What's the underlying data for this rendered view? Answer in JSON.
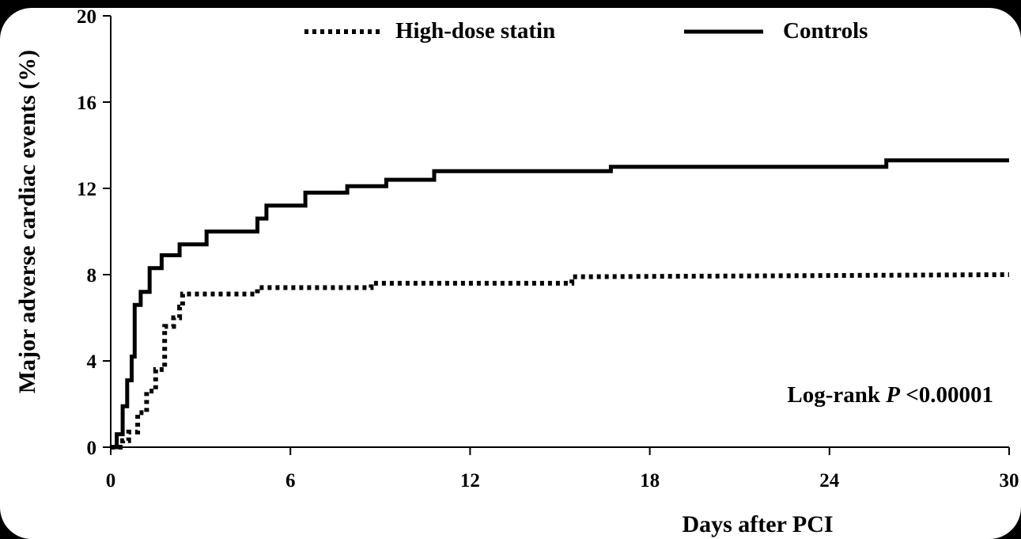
{
  "chart_data": {
    "type": "line",
    "ylabel": "Major adverse cardiac events (%)",
    "xlabel": "Days after PCI",
    "annotation_prefix": "Log-rank ",
    "annotation_p": "P",
    "annotation_value": " <0.00001",
    "xlim": [
      0,
      30
    ],
    "ylim": [
      0,
      20
    ],
    "x_ticks": [
      "0",
      "6",
      "12",
      "18",
      "24",
      "30"
    ],
    "y_ticks": [
      "0",
      "4",
      "8",
      "12",
      "16",
      "20"
    ],
    "legend_placement": "top",
    "grid": false,
    "series": [
      {
        "name": "High-dose statin",
        "style": "dotted",
        "points": [
          [
            0,
            0
          ],
          [
            0.4,
            0
          ],
          [
            0.4,
            0.3
          ],
          [
            0.6,
            0.3
          ],
          [
            0.6,
            0.7
          ],
          [
            0.9,
            0.7
          ],
          [
            0.9,
            1.6
          ],
          [
            1.2,
            1.6
          ],
          [
            1.2,
            2.6
          ],
          [
            1.5,
            2.6
          ],
          [
            1.5,
            3.6
          ],
          [
            1.8,
            3.6
          ],
          [
            1.8,
            5.6
          ],
          [
            2.1,
            5.6
          ],
          [
            2.1,
            6.0
          ],
          [
            2.3,
            6.0
          ],
          [
            2.3,
            6.5
          ],
          [
            2.4,
            6.5
          ],
          [
            2.4,
            7.1
          ],
          [
            4.9,
            7.1
          ],
          [
            4.9,
            7.4
          ],
          [
            8.7,
            7.4
          ],
          [
            8.7,
            7.6
          ],
          [
            15.4,
            7.6
          ],
          [
            15.4,
            7.9
          ],
          [
            30,
            8.0
          ]
        ]
      },
      {
        "name": "Controls",
        "style": "solid",
        "points": [
          [
            0,
            0
          ],
          [
            0.2,
            0
          ],
          [
            0.2,
            0.6
          ],
          [
            0.4,
            0.6
          ],
          [
            0.4,
            1.9
          ],
          [
            0.55,
            1.9
          ],
          [
            0.55,
            3.1
          ],
          [
            0.7,
            3.1
          ],
          [
            0.7,
            4.2
          ],
          [
            0.8,
            4.2
          ],
          [
            0.8,
            6.6
          ],
          [
            1.0,
            6.6
          ],
          [
            1.0,
            7.2
          ],
          [
            1.3,
            7.2
          ],
          [
            1.3,
            8.3
          ],
          [
            1.7,
            8.3
          ],
          [
            1.7,
            8.9
          ],
          [
            2.3,
            8.9
          ],
          [
            2.3,
            9.4
          ],
          [
            3.2,
            9.4
          ],
          [
            3.2,
            10.0
          ],
          [
            4.9,
            10.0
          ],
          [
            4.9,
            10.6
          ],
          [
            5.2,
            10.6
          ],
          [
            5.2,
            11.2
          ],
          [
            6.5,
            11.2
          ],
          [
            6.5,
            11.8
          ],
          [
            7.9,
            11.8
          ],
          [
            7.9,
            12.1
          ],
          [
            9.2,
            12.1
          ],
          [
            9.2,
            12.4
          ],
          [
            10.8,
            12.4
          ],
          [
            10.8,
            12.8
          ],
          [
            16.7,
            12.8
          ],
          [
            16.7,
            13.0
          ],
          [
            25.9,
            13.0
          ],
          [
            25.9,
            13.3
          ],
          [
            30,
            13.3
          ]
        ]
      }
    ]
  }
}
